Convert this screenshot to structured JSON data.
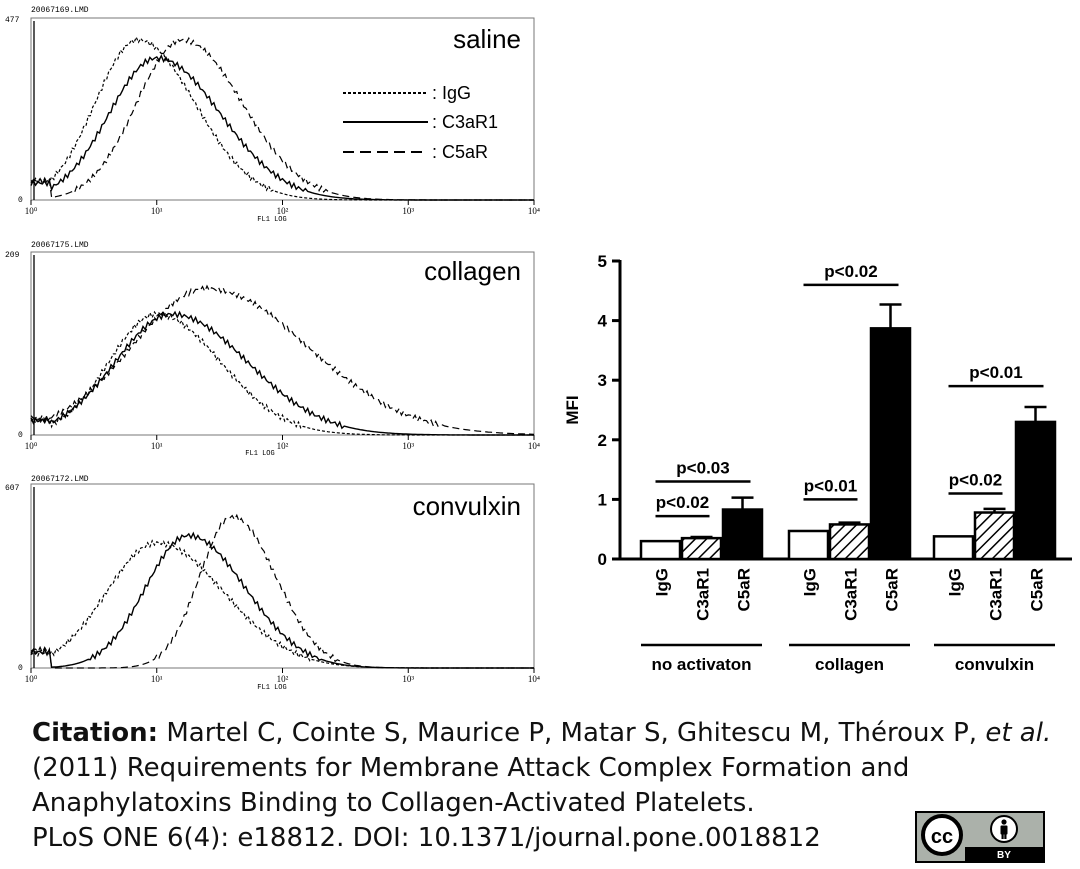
{
  "histograms": [
    {
      "file": "20067169.LMD",
      "ymax": "477",
      "label": "saline",
      "xtick_labels": [
        "10⁰",
        "10¹",
        "10²",
        "10³",
        "10⁴"
      ],
      "xaxis_label": "FL1 LOG",
      "ymin_label": "0",
      "legend": [
        {
          "style": "dotted",
          "text": ": IgG"
        },
        {
          "style": "solid",
          "text": ": C3aR1"
        },
        {
          "style": "dashed",
          "text": ": C5aR"
        }
      ],
      "curves": {
        "IgG": {
          "peak_log": 0.85,
          "width": 0.34,
          "height": 0.88
        },
        "C3aR1": {
          "peak_log": 1.0,
          "width": 0.38,
          "height": 0.78
        },
        "C5aR": {
          "peak_log": 1.2,
          "width": 0.36,
          "height": 0.88
        }
      }
    },
    {
      "file": "20067175.LMD",
      "ymax": "209",
      "label": "collagen",
      "xtick_labels": [
        "10⁰",
        "10¹",
        "10²",
        "10³",
        "10⁴"
      ],
      "xaxis_label": "FL1 LOG",
      "ymin_label": "0",
      "curves": {
        "IgG": {
          "peak_log": 1.0,
          "width": 0.38,
          "height": 0.66
        },
        "C3aR1": {
          "peak_log": 1.12,
          "width": 0.45,
          "height": 0.66
        },
        "C5aR": {
          "peak_log": 1.4,
          "width": 0.6,
          "height": 0.8
        }
      }
    },
    {
      "file": "20067172.LMD",
      "ymax": "607",
      "label": "convulxin",
      "xtick_labels": [
        "10⁰",
        "10¹",
        "10²",
        "10³",
        "10⁴"
      ],
      "xaxis_label": "FL1 LOG",
      "ymin_label": "0",
      "curves": {
        "IgG": {
          "peak_log": 1.0,
          "width": 0.4,
          "height": 0.68
        },
        "C3aR1": {
          "peak_log": 1.25,
          "width": 0.34,
          "height": 0.72
        },
        "C5aR": {
          "peak_log": 1.6,
          "width": 0.26,
          "height": 0.82
        }
      }
    }
  ],
  "chart_data": {
    "type": "bar",
    "ylabel": "MFI",
    "ylim": [
      0,
      5
    ],
    "yticks": [
      "0",
      "1",
      "2",
      "3",
      "4",
      "5"
    ],
    "groups": [
      "no activaton",
      "collagen",
      "convulxin"
    ],
    "bar_labels": [
      "IgG",
      "C3aR1",
      "C5aR"
    ],
    "series": [
      {
        "name": "IgG",
        "fill": "white",
        "values": [
          0.3,
          0.47,
          0.38
        ],
        "errors": [
          0.0,
          0.0,
          0.0
        ]
      },
      {
        "name": "C3aR1",
        "fill": "hatched",
        "values": [
          0.35,
          0.58,
          0.78
        ],
        "errors": [
          0.02,
          0.03,
          0.06
        ]
      },
      {
        "name": "C5aR",
        "fill": "black",
        "values": [
          0.83,
          3.87,
          2.3
        ],
        "errors": [
          0.2,
          0.4,
          0.25
        ]
      }
    ],
    "annotations": [
      {
        "group": 0,
        "text": "p<0.02",
        "from": 0,
        "to": 1,
        "y": 0.72
      },
      {
        "group": 0,
        "text": "p<0.03",
        "from": 0,
        "to": 2,
        "y": 1.3
      },
      {
        "group": 1,
        "text": "p<0.01",
        "from": 0,
        "to": 1,
        "y": 1.0
      },
      {
        "group": 1,
        "text": "p<0.02",
        "from": 0,
        "to": 2,
        "y": 4.6
      },
      {
        "group": 2,
        "text": "p<0.02",
        "from": 0,
        "to": 1,
        "y": 1.1
      },
      {
        "group": 2,
        "text": "p<0.01",
        "from": 0,
        "to": 2,
        "y": 2.9
      }
    ]
  },
  "citation": {
    "label": "Citation:",
    "line1_pre": " Martel C, Cointe S, Maurice P, Matar S, Ghitescu M, Théroux P, ",
    "etal": "et al.",
    "line2": "(2011) Requirements for Membrane Attack Complex Formation and",
    "line3": "Anaphylatoxins Binding to Collagen-Activated Platelets.",
    "line4": "PLoS ONE 6(4): e18812. DOI: 10.1371/journal.pone.0018812"
  },
  "license": {
    "cc": "cc",
    "by": "BY"
  }
}
